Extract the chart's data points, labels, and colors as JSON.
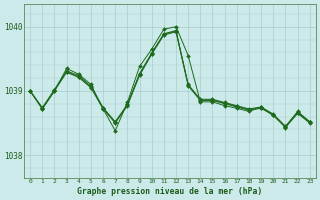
{
  "bg_color": "#cdeaea",
  "grid_color": "#a8cccc",
  "line_color": "#1e6b1e",
  "marker_color": "#1e6b1e",
  "xlabel": "Graphe pression niveau de la mer (hPa)",
  "xlabel_color": "#1a5c1a",
  "tick_color": "#1a5c1a",
  "ylabel_ticks": [
    1038,
    1039,
    1040
  ],
  "xlim": [
    -0.5,
    23.5
  ],
  "ylim": [
    1037.65,
    1040.35
  ],
  "hours": [
    0,
    1,
    2,
    3,
    4,
    5,
    6,
    7,
    8,
    9,
    10,
    11,
    12,
    13,
    14,
    15,
    16,
    17,
    18,
    19,
    20,
    21,
    22,
    23
  ],
  "series": [
    [
      1039.0,
      1038.72,
      1039.0,
      1039.35,
      1039.27,
      1039.05,
      1038.72,
      1038.52,
      1038.78,
      1039.3,
      1039.62,
      1039.93,
      1039.97,
      1039.45,
      1039.05,
      1038.87,
      1038.82,
      1038.78,
      1038.72,
      1038.73,
      1038.63,
      1038.45,
      1038.68,
      1038.52
    ],
    [
      1039.0,
      1038.72,
      1039.02,
      1039.3,
      1039.25,
      1039.08,
      1038.72,
      1038.5,
      1038.78,
      1039.28,
      1039.6,
      1039.9,
      1039.95,
      1039.1,
      1038.87,
      1038.87,
      1038.82,
      1038.77,
      1038.72,
      1038.77,
      1038.65,
      1038.47,
      1038.7,
      1038.55
    ],
    [
      1039.0,
      1038.73,
      1039.03,
      1039.32,
      1039.26,
      1039.1,
      1038.73,
      1038.51,
      1038.79,
      1039.29,
      1039.61,
      1039.91,
      1039.96,
      1039.12,
      1038.88,
      1038.88,
      1038.83,
      1038.78,
      1038.73,
      1038.76,
      1038.66,
      1038.46,
      1038.69,
      1038.53
    ],
    [
      1039.0,
      1038.71,
      1039.01,
      1039.33,
      1039.24,
      1039.07,
      1038.71,
      1038.49,
      1038.77,
      1039.27,
      1039.59,
      1039.89,
      1039.94,
      1039.09,
      1038.86,
      1038.86,
      1038.81,
      1038.76,
      1038.71,
      1038.75,
      1038.64,
      1038.45,
      1038.68,
      1038.52
    ]
  ],
  "series_distinct": [
    [
      1039.0,
      1038.72,
      1039.0,
      1039.35,
      1039.26,
      1039.1,
      1038.72,
      1038.38,
      1038.78,
      1039.38,
      1039.65,
      1039.96,
      1040.0,
      1039.55,
      1038.83,
      1038.83,
      1038.77,
      1038.73,
      1038.69,
      1038.75,
      1038.63,
      1038.44,
      1038.68,
      1038.52
    ],
    [
      1039.0,
      1038.73,
      1039.0,
      1039.3,
      1039.22,
      1039.05,
      1038.73,
      1038.51,
      1038.78,
      1039.24,
      1039.58,
      1039.88,
      1039.93,
      1039.08,
      1038.85,
      1038.85,
      1038.8,
      1038.75,
      1038.7,
      1038.73,
      1038.62,
      1038.43,
      1038.65,
      1038.5
    ],
    [
      1039.0,
      1038.74,
      1039.01,
      1039.31,
      1039.23,
      1039.06,
      1038.74,
      1038.52,
      1038.79,
      1039.25,
      1039.59,
      1039.89,
      1039.94,
      1039.09,
      1038.86,
      1038.86,
      1038.81,
      1038.76,
      1038.71,
      1038.74,
      1038.63,
      1038.44,
      1038.66,
      1038.51
    ],
    [
      1039.0,
      1038.72,
      1039.0,
      1039.29,
      1039.21,
      1039.04,
      1038.72,
      1038.5,
      1038.77,
      1039.23,
      1039.57,
      1039.87,
      1039.92,
      1039.07,
      1038.84,
      1038.84,
      1038.79,
      1038.74,
      1038.69,
      1038.72,
      1038.61,
      1038.42,
      1038.64,
      1038.49
    ]
  ]
}
